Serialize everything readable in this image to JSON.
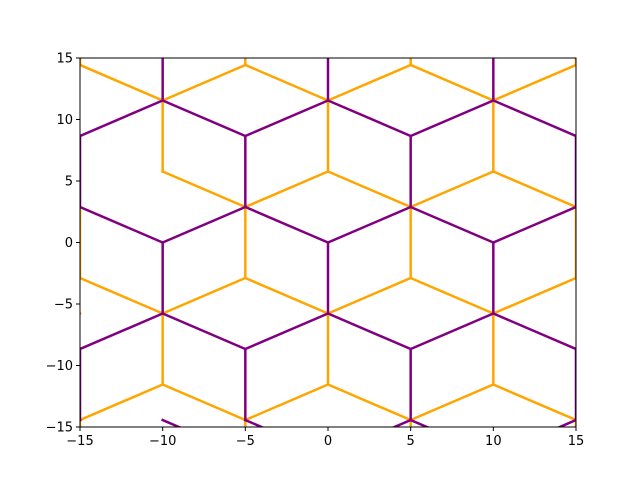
{
  "chart_data": {
    "type": "line",
    "title": "",
    "xlabel": "",
    "ylabel": "",
    "xlim": [
      -15,
      15
    ],
    "ylim": [
      -15,
      15
    ],
    "xticks": [
      -15,
      -10,
      -5,
      0,
      5,
      10,
      15
    ],
    "yticks": [
      -15,
      -10,
      -5,
      0,
      5,
      10,
      15
    ],
    "xtick_labels": [
      "−15",
      "−10",
      "−5",
      "0",
      "5",
      "10",
      "15"
    ],
    "ytick_labels": [
      "−15",
      "−10",
      "−5",
      "0",
      "5",
      "10",
      "15"
    ],
    "grid": false,
    "legend": "none",
    "colors": {
      "series_a": "#ffa500",
      "series_b": "#800080",
      "axes": "#000000",
      "background": "#ffffff"
    },
    "series": [
      {
        "color": "#ffa500",
        "segments": [
          [
            [
              -20,
              0.0
            ],
            [
              -15,
              2.887
            ]
          ],
          [
            [
              -10,
              5.774
            ],
            [
              -5,
              2.887
            ]
          ],
          [
            [
              -5,
              2.887
            ],
            [
              0,
              5.774
            ]
          ],
          [
            [
              0,
              5.774
            ],
            [
              5,
              2.887
            ]
          ],
          [
            [
              5,
              2.887
            ],
            [
              10,
              5.774
            ]
          ],
          [
            [
              10,
              5.774
            ],
            [
              15,
              2.887
            ]
          ],
          [
            [
              -20,
              -8.66
            ],
            [
              -15,
              -5.774
            ]
          ],
          [
            [
              -15,
              -2.887
            ],
            [
              -10,
              -5.774
            ]
          ],
          [
            [
              -10,
              -5.774
            ],
            [
              -5,
              -2.887
            ]
          ],
          [
            [
              -5,
              -2.887
            ],
            [
              0,
              -5.774
            ]
          ],
          [
            [
              0,
              -5.774
            ],
            [
              5,
              -2.887
            ]
          ],
          [
            [
              5,
              -2.887
            ],
            [
              10,
              -5.774
            ]
          ],
          [
            [
              10,
              -5.774
            ],
            [
              15,
              -2.887
            ]
          ],
          [
            [
              -15,
              14.434
            ],
            [
              -10,
              11.547
            ]
          ],
          [
            [
              -10,
              11.547
            ],
            [
              -5,
              14.434
            ]
          ],
          [
            [
              -5,
              14.434
            ],
            [
              0,
              11.547
            ]
          ],
          [
            [
              0,
              11.547
            ],
            [
              5,
              14.434
            ]
          ],
          [
            [
              5,
              14.434
            ],
            [
              10,
              11.547
            ]
          ],
          [
            [
              10,
              11.547
            ],
            [
              15,
              14.434
            ]
          ],
          [
            [
              -15,
              -14.434
            ],
            [
              -10,
              -11.547
            ]
          ],
          [
            [
              -10,
              -11.547
            ],
            [
              -5,
              -14.434
            ]
          ],
          [
            [
              -5,
              -14.434
            ],
            [
              0,
              -11.547
            ]
          ],
          [
            [
              0,
              -11.547
            ],
            [
              5,
              -14.434
            ]
          ],
          [
            [
              5,
              -14.434
            ],
            [
              10,
              -11.547
            ]
          ],
          [
            [
              10,
              -11.547
            ],
            [
              15,
              -14.434
            ]
          ],
          [
            [
              -10,
              11.547
            ],
            [
              -10,
              5.774
            ]
          ],
          [
            [
              0,
              11.547
            ],
            [
              0,
              5.774
            ]
          ],
          [
            [
              10,
              11.547
            ],
            [
              10,
              5.774
            ]
          ],
          [
            [
              -5,
              2.887
            ],
            [
              -5,
              -2.887
            ]
          ],
          [
            [
              5,
              2.887
            ],
            [
              5,
              -2.887
            ]
          ],
          [
            [
              -15,
              2.887
            ],
            [
              -15,
              -2.887
            ]
          ],
          [
            [
              15,
              2.887
            ],
            [
              15,
              -2.887
            ]
          ],
          [
            [
              -10,
              -5.774
            ],
            [
              -10,
              -11.547
            ]
          ],
          [
            [
              0,
              -5.774
            ],
            [
              0,
              -11.547
            ]
          ],
          [
            [
              10,
              -5.774
            ],
            [
              10,
              -11.547
            ]
          ],
          [
            [
              -5,
              -14.434
            ],
            [
              -5,
              -20
            ]
          ],
          [
            [
              5,
              -14.434
            ],
            [
              5,
              -20
            ]
          ],
          [
            [
              -5,
              14.434
            ],
            [
              -5,
              20
            ]
          ],
          [
            [
              5,
              14.434
            ],
            [
              5,
              20
            ]
          ],
          [
            [
              -15,
              14.434
            ],
            [
              -15,
              20
            ]
          ],
          [
            [
              15,
              14.434
            ],
            [
              15,
              20
            ]
          ],
          [
            [
              -15,
              -14.434
            ],
            [
              -15,
              -20
            ]
          ],
          [
            [
              15,
              -14.434
            ],
            [
              15,
              -20
            ]
          ]
        ]
      },
      {
        "color": "#800080",
        "segments": [
          [
            [
              -15,
              8.66
            ],
            [
              -10,
              11.547
            ]
          ],
          [
            [
              -10,
              11.547
            ],
            [
              -5,
              8.66
            ]
          ],
          [
            [
              -5,
              8.66
            ],
            [
              0,
              11.547
            ]
          ],
          [
            [
              0,
              11.547
            ],
            [
              5,
              8.66
            ]
          ],
          [
            [
              5,
              8.66
            ],
            [
              10,
              11.547
            ]
          ],
          [
            [
              10,
              11.547
            ],
            [
              15,
              8.66
            ]
          ],
          [
            [
              -15,
              2.887
            ],
            [
              -10,
              0.0
            ]
          ],
          [
            [
              -10,
              0.0
            ],
            [
              -5,
              2.887
            ]
          ],
          [
            [
              -5,
              2.887
            ],
            [
              0,
              0.0
            ]
          ],
          [
            [
              0,
              0.0
            ],
            [
              5,
              2.887
            ]
          ],
          [
            [
              5,
              2.887
            ],
            [
              10,
              0.0
            ]
          ],
          [
            [
              10,
              0.0
            ],
            [
              15,
              2.887
            ]
          ],
          [
            [
              -15,
              -8.66
            ],
            [
              -10,
              -5.774
            ]
          ],
          [
            [
              -10,
              -5.774
            ],
            [
              -5,
              -8.66
            ]
          ],
          [
            [
              -5,
              -8.66
            ],
            [
              0,
              -5.774
            ]
          ],
          [
            [
              0,
              -5.774
            ],
            [
              5,
              -8.66
            ]
          ],
          [
            [
              5,
              -8.66
            ],
            [
              10,
              -5.774
            ]
          ],
          [
            [
              10,
              -5.774
            ],
            [
              15,
              -8.66
            ]
          ],
          [
            [
              -20,
              -17.32
            ],
            [
              -15,
              -14.434
            ]
          ],
          [
            [
              -10,
              -14.434
            ],
            [
              -5,
              -17.32
            ]
          ],
          [
            [
              -5,
              -14.434
            ],
            [
              0,
              -17.32
            ]
          ],
          [
            [
              0,
              -17.32
            ],
            [
              5,
              -14.434
            ]
          ],
          [
            [
              5,
              -14.434
            ],
            [
              10,
              -17.32
            ]
          ],
          [
            [
              10,
              -17.32
            ],
            [
              15,
              -14.434
            ]
          ],
          [
            [
              -10,
              11.547
            ],
            [
              -10,
              17.32
            ]
          ],
          [
            [
              0,
              11.547
            ],
            [
              0,
              17.32
            ]
          ],
          [
            [
              10,
              11.547
            ],
            [
              10,
              17.32
            ]
          ],
          [
            [
              -5,
              8.66
            ],
            [
              -5,
              2.887
            ]
          ],
          [
            [
              5,
              8.66
            ],
            [
              5,
              2.887
            ]
          ],
          [
            [
              -15,
              8.66
            ],
            [
              -15,
              2.887
            ]
          ],
          [
            [
              15,
              8.66
            ],
            [
              15,
              2.887
            ]
          ],
          [
            [
              -10,
              0.0
            ],
            [
              -10,
              -5.774
            ]
          ],
          [
            [
              0,
              0.0
            ],
            [
              0,
              -5.774
            ]
          ],
          [
            [
              10,
              0.0
            ],
            [
              10,
              -5.774
            ]
          ],
          [
            [
              -5,
              -8.66
            ],
            [
              -5,
              -14.434
            ]
          ],
          [
            [
              5,
              -8.66
            ],
            [
              5,
              -14.434
            ]
          ],
          [
            [
              -15,
              -8.66
            ],
            [
              -15,
              -14.434
            ]
          ],
          [
            [
              15,
              -8.66
            ],
            [
              15,
              -14.434
            ]
          ]
        ]
      }
    ]
  }
}
